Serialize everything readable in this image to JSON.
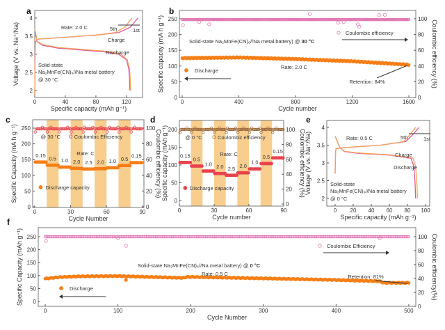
{
  "colors": {
    "orange": "#f57f17",
    "pink": "#e0559a",
    "ce_pink": "#e27ab5",
    "red": "#e8434c",
    "band": "#f7c57a",
    "brown": "#9c6a3c",
    "temp_red": "#e8232a"
  },
  "chart_data": [
    {
      "panel": "a",
      "type": "line",
      "xlabel": "Specific capacity (mAh g⁻¹)",
      "ylabel": "Voltage (V vs. Na⁺/Na)",
      "xticks": [
        0,
        40,
        80,
        120
      ],
      "yticks": [
        2.0,
        2.5,
        3.0,
        3.5,
        4.0
      ],
      "xlim": [
        0,
        141
      ],
      "ylim": [
        1.81,
        4.21
      ],
      "annotations": {
        "rate": "Rate: 2.0 C",
        "fifth": "5th",
        "first": "1st",
        "charge": "Charge",
        "discharge": "Discharge",
        "cell1": "Solid-state",
        "cell2": "Na₂MnFe(CN)₆//Na metal battery",
        "temp_at": "@ ",
        "temp": "30 °C"
      },
      "series": [
        {
          "color": "#e0559a",
          "x": [
            0,
            0.5,
            1,
            5,
            40,
            80,
            110,
            125,
            135
          ],
          "y": [
            1.9,
            3.1,
            3.35,
            3.42,
            3.47,
            3.53,
            3.6,
            3.75,
            4.0
          ]
        },
        {
          "color": "#f5a25a",
          "x": [
            0,
            0.5,
            1,
            5,
            40,
            80,
            105,
            118,
            127
          ],
          "y": [
            1.9,
            3.1,
            3.35,
            3.42,
            3.47,
            3.53,
            3.6,
            3.75,
            4.0
          ]
        },
        {
          "color": "#e0559a",
          "x": [
            0,
            3,
            10,
            30,
            60,
            90,
            110,
            120,
            123,
            124,
            124.5
          ],
          "y": [
            3.7,
            3.35,
            3.25,
            3.17,
            3.12,
            3.07,
            3.0,
            2.85,
            2.6,
            2.3,
            2.0
          ]
        },
        {
          "color": "#f5a25a",
          "x": [
            0,
            3,
            10,
            30,
            60,
            90,
            112,
            121,
            124,
            125,
            125.5
          ],
          "y": [
            3.7,
            3.36,
            3.27,
            3.19,
            3.14,
            3.09,
            3.02,
            2.85,
            2.6,
            2.3,
            2.0
          ]
        }
      ]
    },
    {
      "panel": "b",
      "type": "scatter",
      "xlabel": "Cycle number",
      "ylabel": "Specific capacity (mA h g⁻¹)",
      "y2label": "Coulombic efficiency (%)",
      "xticks": [
        0,
        400,
        800,
        1200,
        1600
      ],
      "yticks": [
        0,
        50,
        100,
        150,
        200,
        250
      ],
      "y2ticks": [
        0,
        20,
        40,
        60,
        80,
        100
      ],
      "xlim": [
        -20,
        1649
      ],
      "ylim": [
        0,
        276.5
      ],
      "y2lim": [
        0,
        110.6
      ],
      "annotations": {
        "cell": "Solid-state Na₂MnFe(CN)₆//Na metal battery) @ ",
        "temp": "30 °C",
        "ce": "Coulombic efficiency",
        "discharge": "Discharge",
        "rate": "Rate: 2.0 C",
        "retention": "Retention: 84%"
      },
      "capacity": {
        "x": [
          0,
          400,
          800,
          1200,
          1600
        ],
        "y": [
          125,
          127,
          122,
          115,
          104
        ]
      },
      "ce": {
        "x": [
          0,
          1600
        ],
        "y": [
          99,
          99
        ]
      },
      "ce_outliers": {
        "x": [
          5,
          120,
          190,
          900,
          1100,
          1140,
          1240,
          1250,
          1390,
          1430
        ],
        "y": [
          92,
          96,
          93,
          106,
          95,
          96,
          93,
          90,
          105,
          105
        ]
      }
    },
    {
      "panel": "c",
      "type": "scatter",
      "xlabel": "Cycle Number",
      "ylabel": "Specific Capacity (mA h g⁻¹)",
      "y2label": "Coulombic efficiency (%)",
      "xticks": [
        0,
        30,
        60,
        90
      ],
      "yticks": [
        0,
        50,
        100,
        150,
        200,
        250
      ],
      "y2ticks": [
        0,
        20,
        40,
        60,
        80,
        100
      ],
      "xlim": [
        -1.7,
        91.2
      ],
      "ylim": [
        -2.2,
        276.5
      ],
      "y2lim": [
        -0.9,
        110.6
      ],
      "bands": [
        [
          10,
          20
        ],
        [
          30,
          40
        ],
        [
          50,
          60
        ],
        [
          70,
          80
        ]
      ],
      "rates": [
        "0.15",
        "0.5",
        "1.0",
        "2.0",
        "2.5",
        "2.0",
        "1.0",
        "0.5",
        "0.15"
      ],
      "capacity": [
        142,
        132,
        126,
        122,
        120,
        121,
        124,
        131,
        140
      ],
      "ce": 99,
      "annotations": {
        "temp": "@ 30 °C",
        "ce": "Coulombic Efficiency",
        "rate": "Rate: C",
        "discharge": "Discharge capacity"
      }
    },
    {
      "panel": "d",
      "type": "scatter",
      "xlabel": "Cycle number",
      "ylabel": "Specific capacity (mAh g⁻¹)",
      "y2label": "Coulombic efficiency (%)",
      "xticks": [
        0,
        30,
        60,
        90
      ],
      "yticks": [
        0,
        50,
        100,
        150,
        200
      ],
      "y2ticks": [
        0,
        20,
        40,
        60,
        80,
        100
      ],
      "xlim": [
        0,
        90
      ],
      "ylim": [
        -15.7,
        225.5
      ],
      "y2lim": [
        -2.8,
        112.1
      ],
      "bands": [
        [
          10,
          20
        ],
        [
          30,
          40
        ],
        [
          50,
          60
        ],
        [
          70,
          80
        ]
      ],
      "rates": [
        "0.15",
        "0.5",
        "1.0",
        "2.0",
        "2.5",
        "2.0",
        "1.0",
        "0.5",
        "0.15"
      ],
      "capacity": [
        107,
        97,
        83,
        76,
        71,
        78,
        89,
        104,
        120
      ],
      "ce": 100,
      "annotations": {
        "temp": "@ 0 °C",
        "ce": "Coulombic efficiency",
        "rate": "Rate: C",
        "discharge": "Discharge capacity"
      }
    },
    {
      "panel": "e",
      "type": "line",
      "xlabel": "Specific capacity (mAh g⁻¹)",
      "ylabel": "Voltage (V vs. Na⁺/Na)",
      "xticks": [
        0,
        20,
        40,
        60,
        80,
        100
      ],
      "yticks": [
        2.0,
        2.5,
        3.0,
        3.5,
        4.0
      ],
      "xlim": [
        -9.2,
        104.6
      ],
      "ylim": [
        1.784,
        4.196
      ],
      "annotations": {
        "rate": "Rate: 0.5 C",
        "fifth": "5th",
        "first": "1st",
        "charge": "Charge",
        "discharge": "Discharge",
        "cell1": "Solid-state",
        "cell2": "Na₂MnFe(CN)₆//Na metal battery",
        "temp_at": "@ ",
        "temp": "0 °C"
      },
      "series": [
        {
          "color": "#e0559a",
          "x": [
            0,
            0.5,
            1,
            10,
            50,
            78,
            86,
            93
          ],
          "y": [
            2.7,
            3.3,
            3.4,
            3.43,
            3.5,
            3.6,
            3.8,
            4.0
          ]
        },
        {
          "color": "#f5a25a",
          "x": [
            0,
            0.5,
            1,
            10,
            50,
            76,
            83,
            89
          ],
          "y": [
            2.7,
            3.3,
            3.4,
            3.43,
            3.5,
            3.6,
            3.8,
            4.0
          ]
        },
        {
          "color": "#e0559a",
          "x": [
            0,
            5,
            10,
            25,
            60,
            84,
            87,
            88.5,
            89
          ],
          "y": [
            3.75,
            3.45,
            3.32,
            3.27,
            3.22,
            3.13,
            2.9,
            2.4,
            2.0
          ]
        },
        {
          "color": "#f5a25a",
          "x": [
            0,
            5,
            10,
            25,
            60,
            86,
            89,
            90.5,
            91
          ],
          "y": [
            3.75,
            3.45,
            3.33,
            3.28,
            3.23,
            3.14,
            2.9,
            2.4,
            2.0
          ]
        }
      ]
    },
    {
      "panel": "f",
      "type": "scatter",
      "xlabel": "Cycle Number",
      "ylabel": "Specific Capacity (mAh g⁻¹)",
      "y2label": "Coulombic efficiency(%)",
      "xticks": [
        0,
        100,
        200,
        300,
        400,
        500
      ],
      "yticks": [
        0,
        50,
        100,
        150,
        200,
        250
      ],
      "y2ticks": [
        0,
        20,
        40,
        60,
        80,
        100
      ],
      "xlim": [
        -9.6,
        509.6
      ],
      "ylim": [
        -18.8,
        285
      ],
      "y2lim": [
        0,
        113
      ],
      "annotations": {
        "cell": "Solid-state Na₂MnFe(CN)₆//Na metal battery) @ ",
        "temp": "0 °C",
        "ce": "Coulombic Efficiency",
        "discharge": "Discharge",
        "rate": "Rate: 0.5 C",
        "retention": "Retention: 81%"
      },
      "capacity": {
        "x": [
          0,
          20,
          50,
          100,
          190,
          195,
          300,
          400,
          460,
          465,
          500
        ],
        "y": [
          88,
          94,
          97,
          98,
          91,
          95,
          89,
          83,
          78,
          72,
          72
        ]
      },
      "ce": {
        "x": [
          0,
          500
        ],
        "y": [
          100,
          100
        ]
      },
      "ce_outliers": {
        "x": [
          1,
          100,
          111,
          460
        ],
        "y": [
          94,
          98,
          87,
          98
        ]
      },
      "cap_outliers": {
        "x": [
          111
        ],
        "y": [
          83
        ]
      }
    }
  ]
}
